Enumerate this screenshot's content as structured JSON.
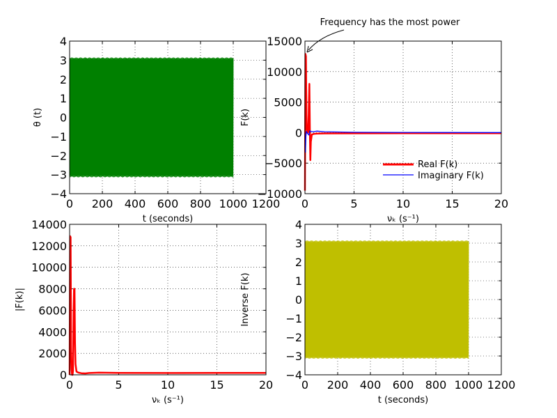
{
  "chart_data": [
    {
      "type": "line",
      "panel": "top-left",
      "xlabel": "t (seconds)",
      "ylabel": "θ (t)",
      "xlim": [
        0,
        1200
      ],
      "ylim": [
        -4,
        4
      ],
      "xticks": [
        "0",
        "200",
        "400",
        "600",
        "800",
        "1000",
        "1200"
      ],
      "yticks": [
        "−4",
        "−3",
        "−2",
        "−1",
        "0",
        "1",
        "2",
        "3",
        "4"
      ],
      "grid": true,
      "series": [
        {
          "color": "#008000",
          "style": "dense-oscillation",
          "x_range": [
            0,
            1000
          ],
          "amplitude": 3.14
        }
      ]
    },
    {
      "type": "line",
      "panel": "top-right",
      "xlabel": "νₖ (s⁻¹)",
      "ylabel": "F(k)",
      "xlim": [
        0,
        20
      ],
      "ylim": [
        -10000,
        15000
      ],
      "xticks": [
        "0",
        "5",
        "10",
        "15",
        "20"
      ],
      "yticks": [
        "−10000",
        "−5000",
        "0",
        "5000",
        "10000",
        "15000"
      ],
      "grid": true,
      "annotation": {
        "text": "Frequency has the most power",
        "point": [
          0.05,
          13000
        ]
      },
      "legend": {
        "position": "lower-right"
      },
      "series": [
        {
          "name": "Real F(k)",
          "color": "#ff0000",
          "x": [
            0,
            0.05,
            0.1,
            0.15,
            0.2,
            0.25,
            0.3,
            0.35,
            0.4,
            0.45,
            0.5,
            0.55,
            0.6,
            0.7,
            0.9,
            1.2,
            2,
            5,
            10,
            15,
            20
          ],
          "y": [
            -9500,
            12900,
            12500,
            3000,
            500,
            0,
            0,
            200,
            4500,
            8000,
            500,
            -4500,
            -1500,
            -300,
            -200,
            -150,
            -120,
            -110,
            -100,
            -100,
            -100
          ]
        },
        {
          "name": "Imaginary F(k)",
          "color": "#0000ff",
          "x": [
            0,
            0.05,
            0.1,
            0.15,
            0.2,
            0.3,
            0.4,
            0.5,
            0.6,
            0.8,
            1.2,
            2,
            5,
            10,
            20
          ],
          "y": [
            0,
            -3200,
            -600,
            200,
            0,
            -200,
            -400,
            300,
            200,
            150,
            250,
            150,
            60,
            30,
            10
          ]
        }
      ]
    },
    {
      "type": "line",
      "panel": "bottom-left",
      "xlabel": "νₖ (s⁻¹)",
      "ylabel": "|F(k)|",
      "xlim": [
        0,
        20
      ],
      "ylim": [
        0,
        14000
      ],
      "xticks": [
        "0",
        "5",
        "10",
        "15",
        "20"
      ],
      "yticks": [
        "0",
        "2000",
        "4000",
        "6000",
        "8000",
        "10000",
        "12000",
        "14000"
      ],
      "grid": true,
      "series": [
        {
          "color": "#ff0000",
          "x": [
            0,
            0.05,
            0.1,
            0.15,
            0.2,
            0.25,
            0.3,
            0.35,
            0.4,
            0.45,
            0.5,
            0.55,
            0.6,
            0.7,
            0.9,
            1.2,
            1.6,
            2,
            3,
            5,
            10,
            15,
            20
          ],
          "y": [
            0,
            12900,
            12800,
            2500,
            500,
            0,
            0,
            400,
            6000,
            8000,
            8000,
            3000,
            1000,
            300,
            200,
            150,
            130,
            170,
            200,
            180,
            170,
            175,
            180
          ]
        }
      ]
    },
    {
      "type": "line",
      "panel": "bottom-right",
      "xlabel": "t (seconds)",
      "ylabel": "Inverse F(k)",
      "xlim": [
        0,
        1200
      ],
      "ylim": [
        -4,
        4
      ],
      "xticks": [
        "0",
        "200",
        "400",
        "600",
        "800",
        "1000",
        "1200"
      ],
      "yticks": [
        "−4",
        "−3",
        "−2",
        "−1",
        "0",
        "1",
        "2",
        "3",
        "4"
      ],
      "grid": true,
      "series": [
        {
          "color": "#bfbf00",
          "style": "dense-oscillation",
          "x_range": [
            0,
            1000
          ],
          "amplitude": 3.14
        }
      ]
    }
  ]
}
